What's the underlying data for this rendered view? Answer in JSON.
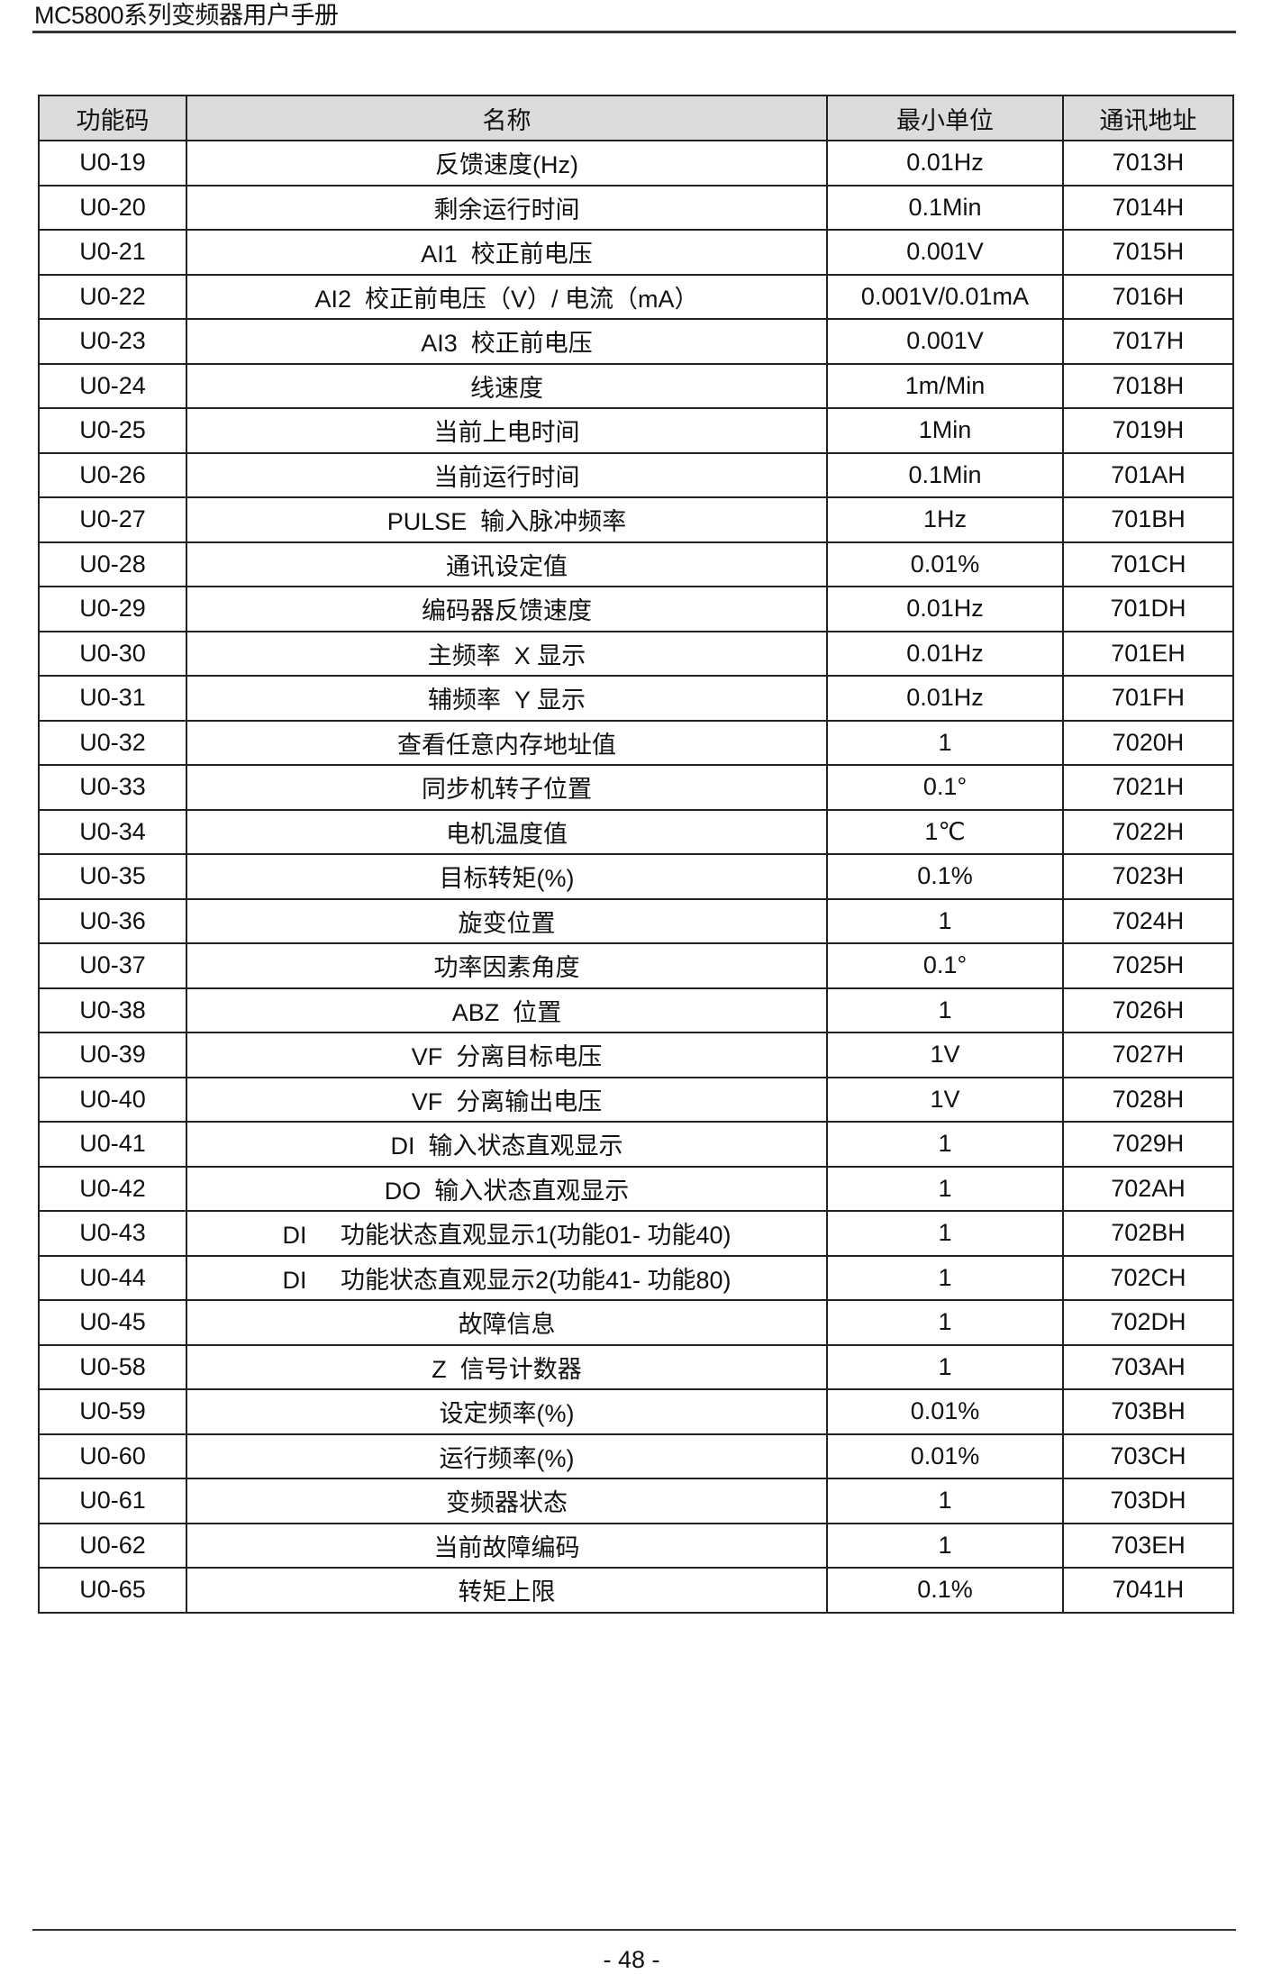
{
  "header": {
    "title": "MC5800系列变频器用户手册"
  },
  "table": {
    "columns": [
      "功能码",
      "名称",
      "最小单位",
      "通讯地址"
    ],
    "rows": [
      [
        "U0-19",
        "反馈速度(Hz)",
        "0.01Hz",
        "7013H"
      ],
      [
        "U0-20",
        "剩余运行时间",
        "0.1Min",
        "7014H"
      ],
      [
        "U0-21",
        "AI1  校正前电压",
        "0.001V",
        "7015H"
      ],
      [
        "U0-22",
        "AI2  校正前电压（V）/ 电流（mA）",
        "0.001V/0.01mA",
        "7016H"
      ],
      [
        "U0-23",
        "AI3  校正前电压",
        "0.001V",
        "7017H"
      ],
      [
        "U0-24",
        "线速度",
        "1m/Min",
        "7018H"
      ],
      [
        "U0-25",
        "当前上电时间",
        "1Min",
        "7019H"
      ],
      [
        "U0-26",
        "当前运行时间",
        "0.1Min",
        "701AH"
      ],
      [
        "U0-27",
        "PULSE  输入脉冲频率",
        "1Hz",
        "701BH"
      ],
      [
        "U0-28",
        "通讯设定值",
        "0.01%",
        "701CH"
      ],
      [
        "U0-29",
        "编码器反馈速度",
        "0.01Hz",
        "701DH"
      ],
      [
        "U0-30",
        "主频率  X 显示",
        "0.01Hz",
        "701EH"
      ],
      [
        "U0-31",
        "辅频率  Y 显示",
        "0.01Hz",
        "701FH"
      ],
      [
        "U0-32",
        "查看任意内存地址值",
        "1",
        "7020H"
      ],
      [
        "U0-33",
        "同步机转子位置",
        "0.1°",
        "7021H"
      ],
      [
        "U0-34",
        "电机温度值",
        "1℃",
        "7022H"
      ],
      [
        "U0-35",
        "目标转矩(%)",
        "0.1%",
        "7023H"
      ],
      [
        "U0-36",
        "旋变位置",
        "1",
        "7024H"
      ],
      [
        "U0-37",
        "功率因素角度",
        "0.1°",
        "7025H"
      ],
      [
        "U0-38",
        "ABZ  位置",
        "1",
        "7026H"
      ],
      [
        "U0-39",
        "VF  分离目标电压",
        "1V",
        "7027H"
      ],
      [
        "U0-40",
        "VF  分离输出电压",
        "1V",
        "7028H"
      ],
      [
        "U0-41",
        "DI  输入状态直观显示",
        "1",
        "7029H"
      ],
      [
        "U0-42",
        "DO  输入状态直观显示",
        "1",
        "702AH"
      ],
      [
        "U0-43",
        "DI     功能状态直观显示1(功能01- 功能40)",
        "1",
        "702BH"
      ],
      [
        "U0-44",
        "DI     功能状态直观显示2(功能41- 功能80)",
        "1",
        "702CH"
      ],
      [
        "U0-45",
        "故障信息",
        "1",
        "702DH"
      ],
      [
        "U0-58",
        "Z  信号计数器",
        "1",
        "703AH"
      ],
      [
        "U0-59",
        "设定频率(%)",
        "0.01%",
        "703BH"
      ],
      [
        "U0-60",
        "运行频率(%)",
        "0.01%",
        "703CH"
      ],
      [
        "U0-61",
        "变频器状态",
        "1",
        "703DH"
      ],
      [
        "U0-62",
        "当前故障编码",
        "1",
        "703EH"
      ],
      [
        "U0-65",
        "转矩上限",
        "0.1%",
        "7041H"
      ]
    ]
  },
  "footer": {
    "page": "- 48 -"
  }
}
